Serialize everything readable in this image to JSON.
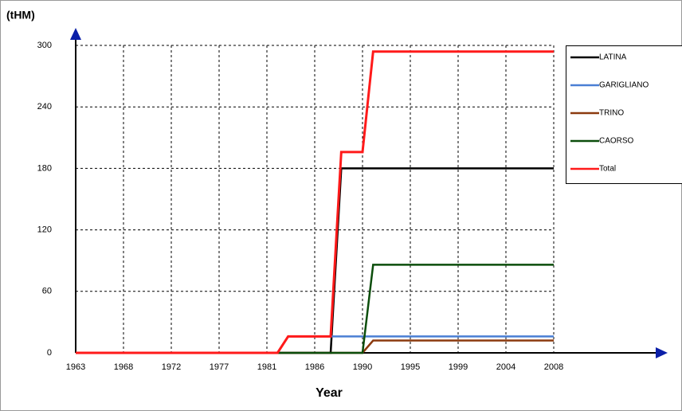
{
  "chart_data": {
    "type": "line",
    "title": "(tHM)",
    "x_label": "Year",
    "x": [
      1963,
      1982,
      1983,
      1987,
      1988,
      1990,
      1991,
      2008
    ],
    "series": [
      {
        "name": "LATINA",
        "color": "#000000",
        "values": [
          0,
          0,
          0,
          0,
          180,
          180,
          180,
          180
        ]
      },
      {
        "name": "GARIGLIANO",
        "color": "#4a7fd4",
        "values": [
          0,
          0,
          16,
          16,
          16,
          16,
          16,
          16
        ]
      },
      {
        "name": "TRINO",
        "color": "#8b3a0e",
        "values": [
          0,
          0,
          0,
          0,
          0,
          0,
          12,
          12
        ]
      },
      {
        "name": "CAORSO",
        "color": "#0b4d0b",
        "values": [
          0,
          0,
          0,
          0,
          0,
          0,
          86,
          86
        ]
      },
      {
        "name": "Total",
        "color": "#ff1a1a",
        "values": [
          0,
          0,
          16,
          16,
          196,
          196,
          294,
          294
        ]
      }
    ],
    "xlim": [
      1963,
      2008
    ],
    "ylim": [
      0,
      300
    ],
    "xticks": [
      1963,
      {
        "value": 1967.5,
        "label": "1968"
      },
      1972,
      {
        "value": 1976.5,
        "label": "1977"
      },
      1981,
      {
        "value": 1985.5,
        "label": "1986"
      },
      1990,
      {
        "value": 1994.5,
        "label": "1995"
      },
      1999,
      {
        "value": 2003.5,
        "label": "2004"
      },
      2008
    ],
    "yticks": [
      0,
      60,
      120,
      180,
      240,
      300
    ],
    "grid": true,
    "legend": "right"
  }
}
